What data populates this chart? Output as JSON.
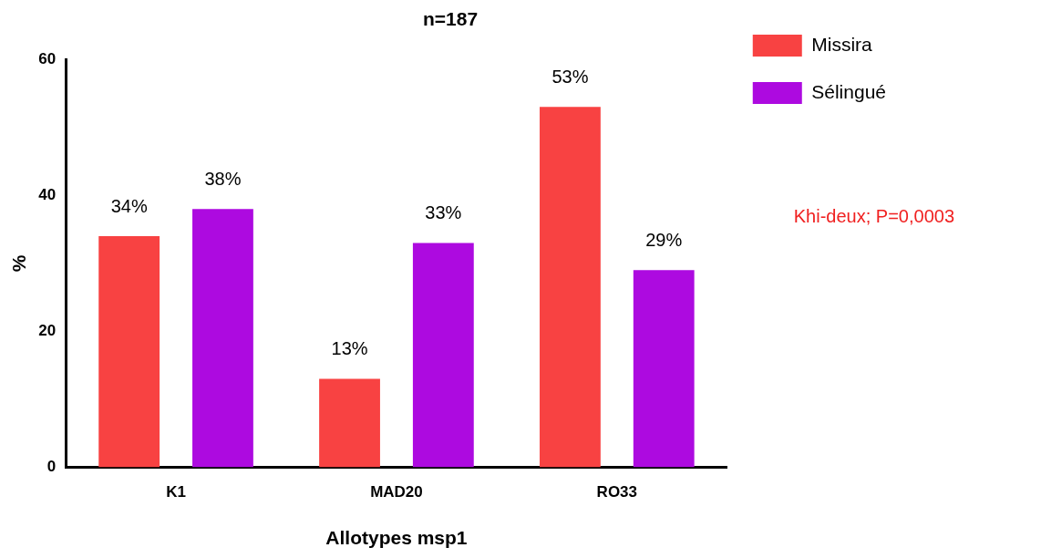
{
  "chart_data": {
    "type": "bar",
    "title": "n=187",
    "xlabel": "Allotypes msp1",
    "ylabel": "%",
    "categories": [
      "K1",
      "MAD20",
      "RO33"
    ],
    "series": [
      {
        "name": "Missira",
        "color": "#f84242",
        "values": [
          34,
          13,
          53
        ],
        "value_labels": [
          "34%",
          "13%",
          "53%"
        ]
      },
      {
        "name": "Sélingué",
        "color": "#ad0ae0",
        "values": [
          38,
          33,
          29
        ],
        "value_labels": [
          "38%",
          "33%",
          "29%"
        ]
      }
    ],
    "ylim": [
      0,
      60
    ],
    "yticks": [
      0,
      20,
      40,
      60
    ],
    "grid": false,
    "legend": "top right",
    "annotations": [
      "Khi-deux; P=0,0003"
    ]
  }
}
